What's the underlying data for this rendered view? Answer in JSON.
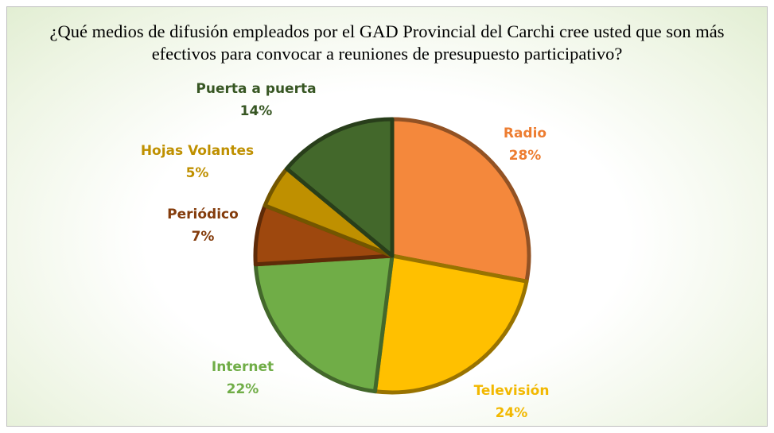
{
  "chart_data": {
    "type": "pie",
    "title": "¿Qué medios de difusión empleados por el GAD Provincial del Carchi cree usted que son más efectivos para convocar a reuniones de presupuesto participativo?",
    "categories": [
      "Radio",
      "Televisión",
      "Internet",
      "Periódico",
      "Hojas Volantes",
      "Puerta a puerta"
    ],
    "values": [
      28,
      24,
      22,
      7,
      5,
      14
    ],
    "value_labels": [
      "28%",
      "24%",
      "22%",
      "7%",
      "5%",
      "14%"
    ],
    "colors": [
      "#f4883c",
      "#ffc000",
      "#70ad47",
      "#9e480e",
      "#bf9000",
      "#43682b"
    ],
    "label_colors": [
      "#ed7d31",
      "#f2b800",
      "#70ad47",
      "#843c0c",
      "#bf9000",
      "#375623"
    ]
  }
}
